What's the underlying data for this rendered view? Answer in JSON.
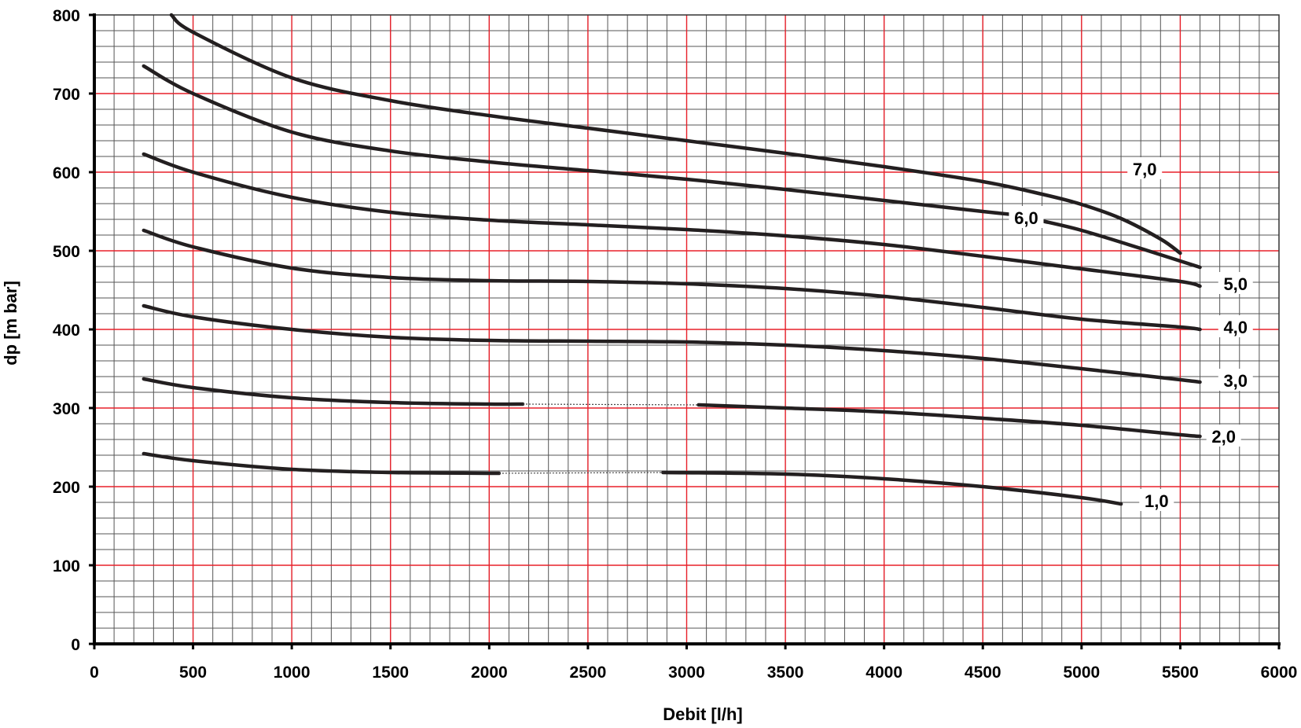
{
  "chart_data": {
    "type": "line",
    "title": "",
    "xlabel": "Debit  [l/h]",
    "ylabel": "dp [m bar]",
    "xlim": [
      0,
      6000
    ],
    "ylim": [
      0,
      800
    ],
    "x_ticks": [
      0,
      500,
      1000,
      1500,
      2000,
      2500,
      3000,
      3500,
      4000,
      4500,
      5000,
      5500,
      6000
    ],
    "y_ticks": [
      0,
      100,
      200,
      300,
      400,
      500,
      600,
      700,
      800
    ],
    "x_tick_labels": [
      "0",
      "500",
      "1000",
      "1500",
      "2000",
      "2500",
      "3000",
      "3500",
      "4000",
      "4500",
      "5000",
      "5500",
      "6000"
    ],
    "y_tick_labels": [
      "0",
      "100",
      "200",
      "300",
      "400",
      "500",
      "600",
      "700",
      "800"
    ],
    "grid": true,
    "major_grid_color": "#e8202a",
    "minor_grid_color": "#555555",
    "line_color": "#231f20",
    "series": [
      {
        "name": "1,0",
        "segments": [
          [
            [
              250,
              242
            ],
            [
              500,
              233
            ],
            [
              1000,
              222
            ],
            [
              1500,
              218
            ],
            [
              2050,
              217
            ]
          ],
          [
            [
              2880,
              218
            ],
            [
              3500,
              216
            ],
            [
              4000,
              210
            ],
            [
              4500,
              200
            ],
            [
              5000,
              186
            ],
            [
              5200,
              178
            ]
          ]
        ],
        "dotted_gap": [
          [
            2050,
            217
          ],
          [
            2880,
            218
          ]
        ]
      },
      {
        "name": "2,0",
        "segments": [
          [
            [
              250,
              337
            ],
            [
              500,
              326
            ],
            [
              1000,
              313
            ],
            [
              1500,
              307
            ],
            [
              2000,
              305
            ],
            [
              2170,
              305
            ]
          ],
          [
            [
              3060,
              304
            ],
            [
              3500,
              300
            ],
            [
              4000,
              295
            ],
            [
              4500,
              287
            ],
            [
              5000,
              278
            ],
            [
              5500,
              266
            ],
            [
              5600,
              264
            ]
          ]
        ],
        "dotted_gap": [
          [
            2170,
            305
          ],
          [
            3060,
            304
          ]
        ]
      },
      {
        "name": "3,0",
        "segments": [
          [
            [
              250,
              430
            ],
            [
              500,
              416
            ],
            [
              1000,
              400
            ],
            [
              1500,
              390
            ],
            [
              2000,
              386
            ],
            [
              2500,
              385
            ],
            [
              3000,
              384
            ],
            [
              3500,
              380
            ],
            [
              4000,
              373
            ],
            [
              4500,
              363
            ],
            [
              5000,
              350
            ],
            [
              5500,
              336
            ],
            [
              5600,
              333
            ]
          ]
        ]
      },
      {
        "name": "4,0",
        "segments": [
          [
            [
              250,
              526
            ],
            [
              500,
              505
            ],
            [
              1000,
              478
            ],
            [
              1500,
              466
            ],
            [
              2000,
              462
            ],
            [
              2500,
              461
            ],
            [
              3000,
              458
            ],
            [
              3500,
              452
            ],
            [
              4000,
              442
            ],
            [
              4500,
              428
            ],
            [
              5000,
              413
            ],
            [
              5500,
              403
            ],
            [
              5600,
              400
            ]
          ]
        ]
      },
      {
        "name": "5,0",
        "segments": [
          [
            [
              250,
              623
            ],
            [
              500,
              600
            ],
            [
              1000,
              568
            ],
            [
              1500,
              549
            ],
            [
              2000,
              539
            ],
            [
              2500,
              533
            ],
            [
              3000,
              527
            ],
            [
              3500,
              519
            ],
            [
              4000,
              508
            ],
            [
              4500,
              493
            ],
            [
              5000,
              477
            ],
            [
              5500,
              461
            ],
            [
              5600,
              455
            ]
          ]
        ]
      },
      {
        "name": "6,0",
        "segments": [
          [
            [
              250,
              735
            ],
            [
              500,
              700
            ],
            [
              1000,
              651
            ],
            [
              1500,
              627
            ],
            [
              2000,
              613
            ],
            [
              2500,
              602
            ],
            [
              3000,
              591
            ],
            [
              3500,
              578
            ],
            [
              4000,
              564
            ],
            [
              4500,
              550
            ],
            [
              4700,
              545
            ]
          ],
          [
            [
              4800,
              538
            ],
            [
              5000,
              526
            ],
            [
              5300,
              503
            ],
            [
              5500,
              487
            ],
            [
              5600,
              479
            ]
          ]
        ]
      },
      {
        "name": "7,0",
        "segments": [
          [
            [
              390,
              800
            ],
            [
              500,
              778
            ],
            [
              1000,
              720
            ],
            [
              1500,
              691
            ],
            [
              2000,
              672
            ],
            [
              2500,
              656
            ],
            [
              3000,
              640
            ],
            [
              3500,
              624
            ],
            [
              4000,
              607
            ],
            [
              4500,
              588
            ],
            [
              4800,
              572
            ],
            [
              5000,
              559
            ],
            [
              5200,
              541
            ],
            [
              5400,
              515
            ],
            [
              5500,
              497
            ]
          ]
        ]
      }
    ],
    "series_label_positions": [
      {
        "name": "1,0",
        "x": 5380,
        "y": 182
      },
      {
        "name": "2,0",
        "x": 5720,
        "y": 264
      },
      {
        "name": "3,0",
        "x": 5780,
        "y": 335
      },
      {
        "name": "4,0",
        "x": 5780,
        "y": 403
      },
      {
        "name": "5,0",
        "x": 5780,
        "y": 458
      },
      {
        "name": "6,0",
        "x": 4720,
        "y": 542
      },
      {
        "name": "7,0",
        "x": 5320,
        "y": 604
      }
    ]
  }
}
